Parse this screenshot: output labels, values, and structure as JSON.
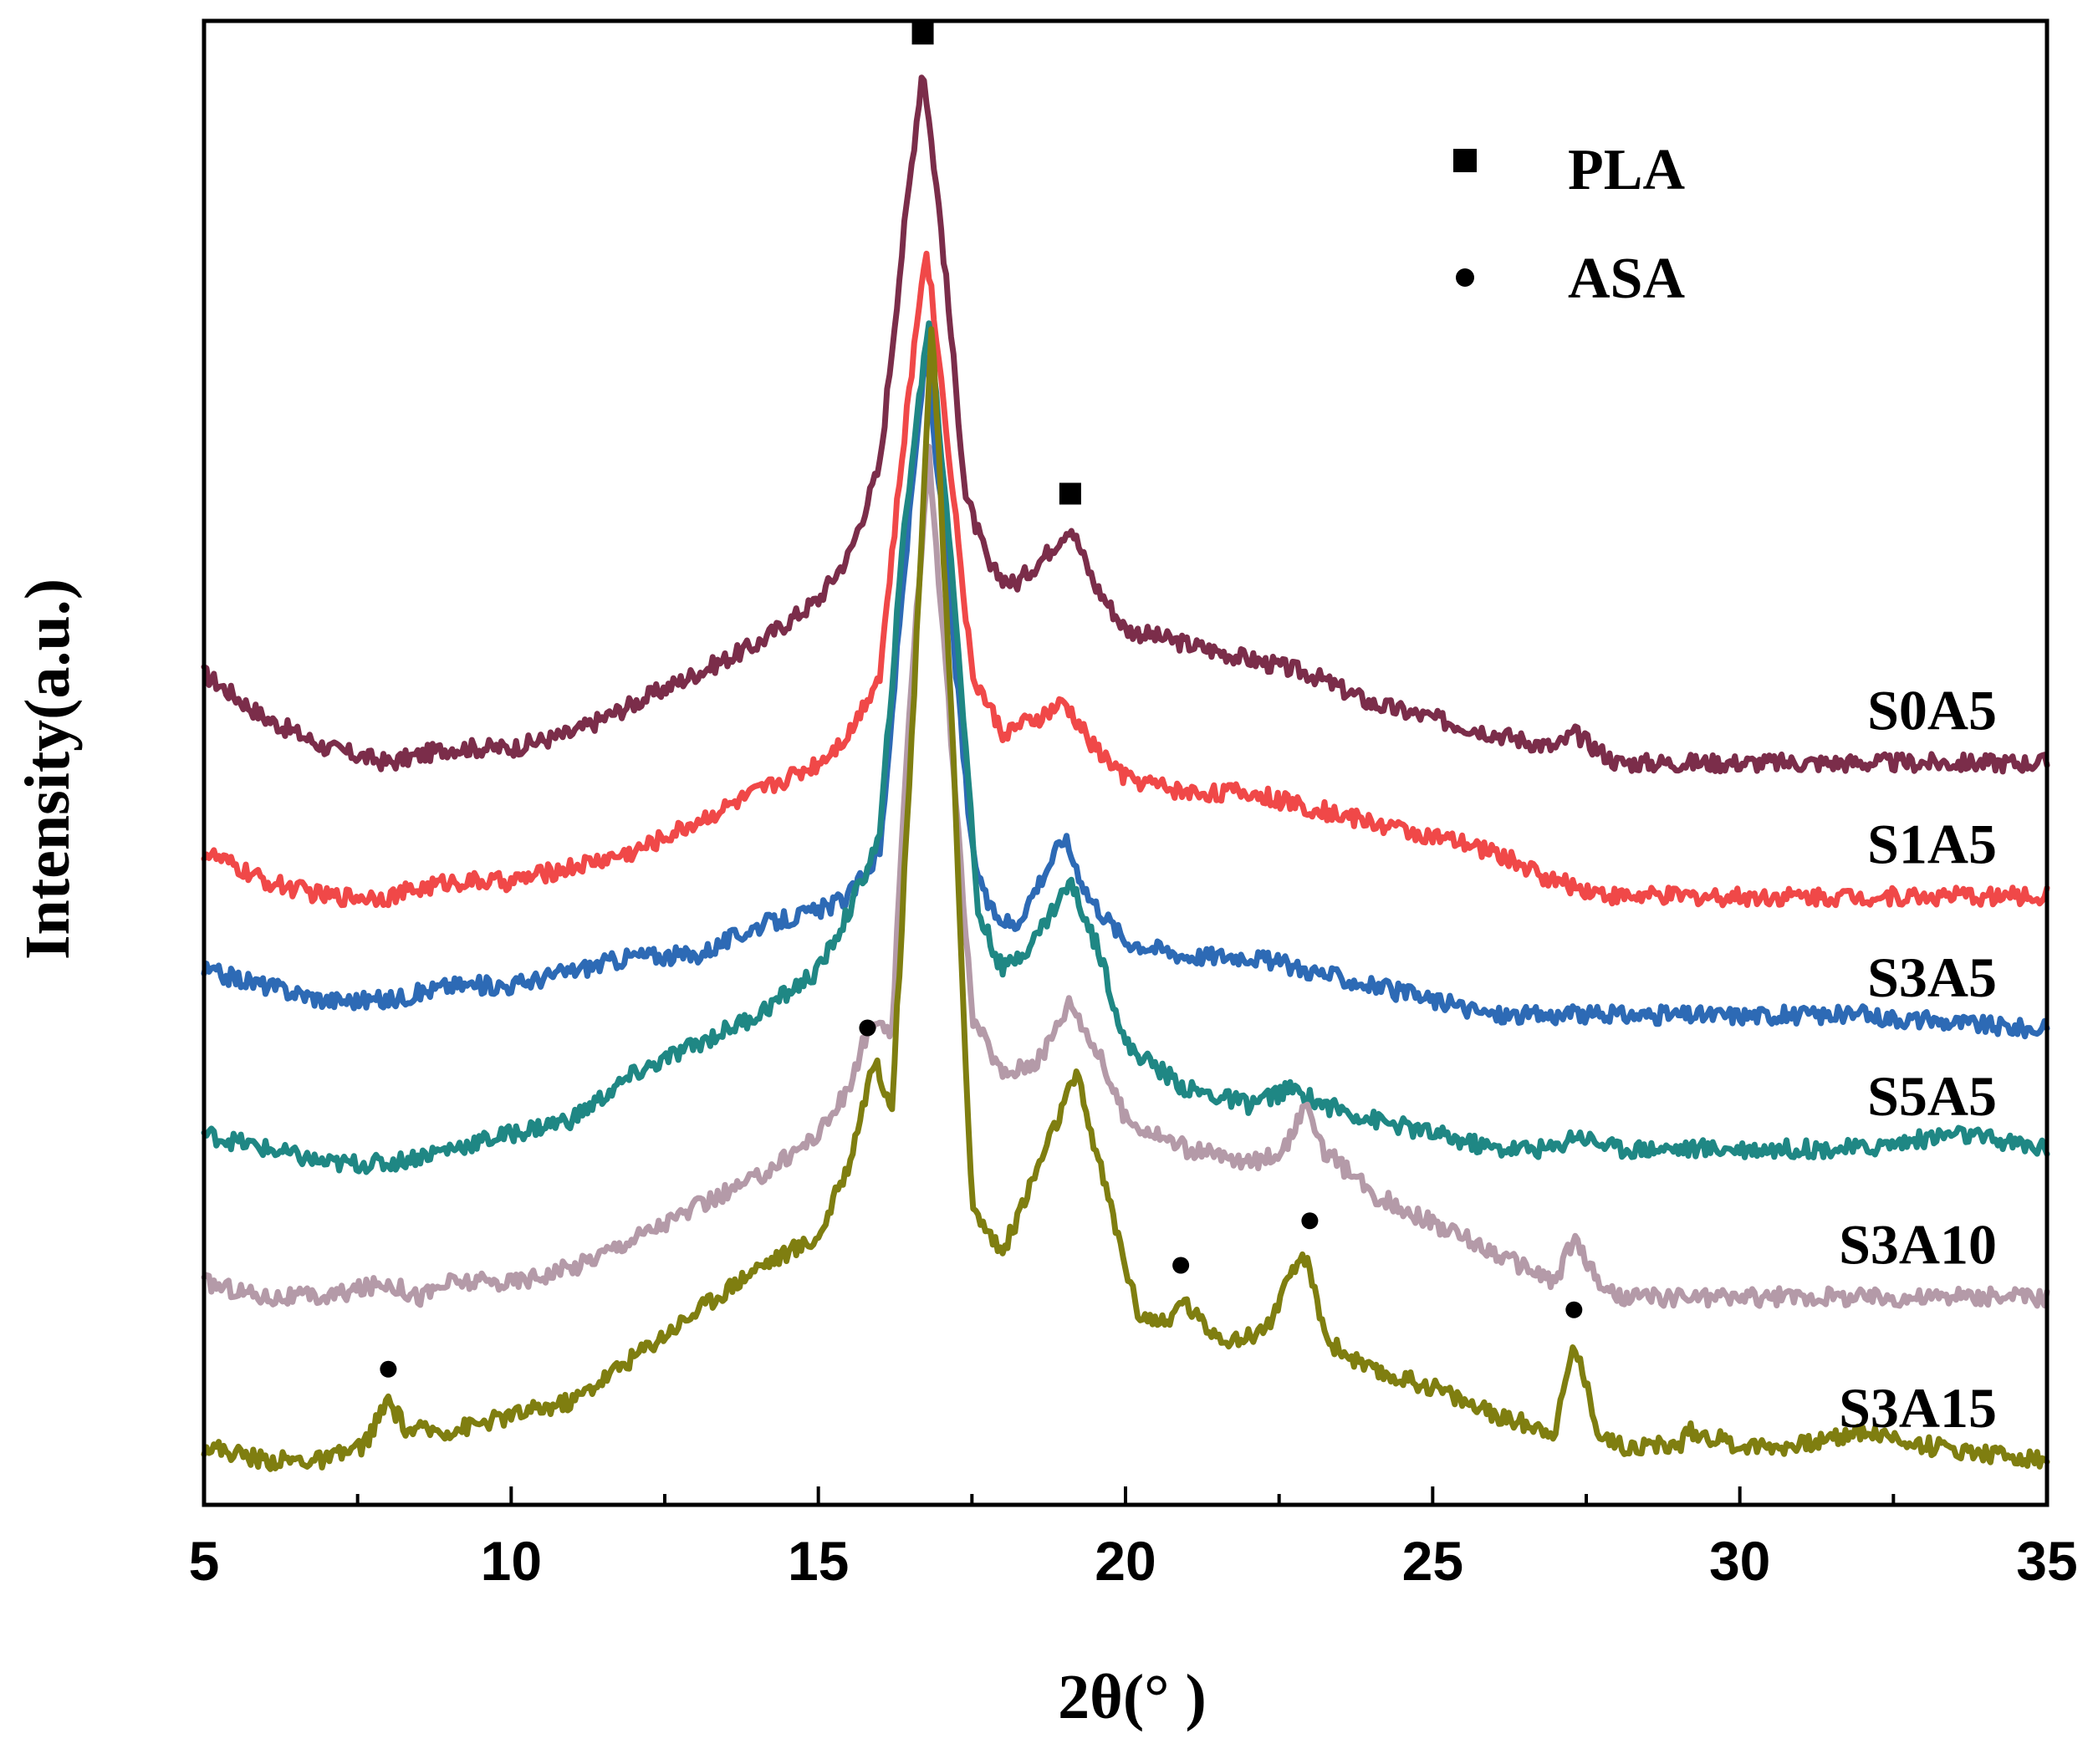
{
  "chart_data": {
    "type": "line",
    "title": "",
    "xlabel": "2θ(°  )",
    "ylabel": "Intensity(a.u.)",
    "xlim": [
      5,
      35
    ],
    "ylim": [
      0,
      1
    ],
    "xticks": [
      5,
      10,
      15,
      20,
      25,
      30,
      35
    ],
    "grid": false,
    "legend": {
      "position": "top-right",
      "entries": [
        {
          "label": "PLA",
          "marker": "square"
        },
        {
          "label": "ASA",
          "marker": "circle"
        }
      ]
    },
    "series": [
      {
        "name": "S0A5",
        "color": "#7b2d4a",
        "points": [
          [
            5,
            0.56
          ],
          [
            6,
            0.53
          ],
          [
            7,
            0.51
          ],
          [
            8,
            0.5
          ],
          [
            9,
            0.51
          ],
          [
            10,
            0.51
          ],
          [
            11,
            0.52
          ],
          [
            12,
            0.54
          ],
          [
            13,
            0.56
          ],
          [
            14,
            0.58
          ],
          [
            15,
            0.61
          ],
          [
            15.5,
            0.64
          ],
          [
            16,
            0.7
          ],
          [
            16.4,
            0.86
          ],
          [
            16.7,
            0.97
          ],
          [
            17.0,
            0.86
          ],
          [
            17.4,
            0.68
          ],
          [
            17.8,
            0.63
          ],
          [
            18.2,
            0.62
          ],
          [
            18.7,
            0.64
          ],
          [
            19.1,
            0.66
          ],
          [
            19.5,
            0.62
          ],
          [
            20,
            0.59
          ],
          [
            21,
            0.58
          ],
          [
            22,
            0.57
          ],
          [
            23,
            0.56
          ],
          [
            24,
            0.54
          ],
          [
            25,
            0.53
          ],
          [
            26,
            0.52
          ],
          [
            27,
            0.51
          ],
          [
            27.3,
            0.52
          ],
          [
            28,
            0.5
          ],
          [
            30,
            0.5
          ],
          [
            32,
            0.5
          ],
          [
            35,
            0.5
          ]
        ]
      },
      {
        "name": "S1A5",
        "color": "#f04848",
        "points": [
          [
            5,
            0.44
          ],
          [
            6,
            0.42
          ],
          [
            7,
            0.41
          ],
          [
            8,
            0.41
          ],
          [
            9,
            0.42
          ],
          [
            10,
            0.42
          ],
          [
            11,
            0.43
          ],
          [
            12,
            0.44
          ],
          [
            13,
            0.46
          ],
          [
            14,
            0.48
          ],
          [
            15,
            0.5
          ],
          [
            15.5,
            0.52
          ],
          [
            16,
            0.56
          ],
          [
            16.4,
            0.72
          ],
          [
            16.75,
            0.85
          ],
          [
            17.1,
            0.72
          ],
          [
            17.5,
            0.56
          ],
          [
            18,
            0.52
          ],
          [
            18.6,
            0.53
          ],
          [
            19,
            0.54
          ],
          [
            19.5,
            0.51
          ],
          [
            20,
            0.49
          ],
          [
            21,
            0.48
          ],
          [
            22,
            0.48
          ],
          [
            23,
            0.47
          ],
          [
            24,
            0.46
          ],
          [
            25,
            0.45
          ],
          [
            26,
            0.44
          ],
          [
            27,
            0.42
          ],
          [
            28,
            0.41
          ],
          [
            30,
            0.41
          ],
          [
            32,
            0.41
          ],
          [
            35,
            0.41
          ]
        ]
      },
      {
        "name": "S3A5",
        "color": "#2d6ab5",
        "points": [
          [
            5,
            0.36
          ],
          [
            6,
            0.35
          ],
          [
            7,
            0.34
          ],
          [
            8,
            0.34
          ],
          [
            9,
            0.35
          ],
          [
            10,
            0.35
          ],
          [
            11,
            0.36
          ],
          [
            12,
            0.37
          ],
          [
            13,
            0.37
          ],
          [
            14,
            0.39
          ],
          [
            15,
            0.4
          ],
          [
            15.5,
            0.41
          ],
          [
            16,
            0.44
          ],
          [
            16.4,
            0.63
          ],
          [
            16.75,
            0.78
          ],
          [
            17.1,
            0.63
          ],
          [
            17.5,
            0.44
          ],
          [
            17.8,
            0.4
          ],
          [
            18.2,
            0.39
          ],
          [
            18.6,
            0.42
          ],
          [
            19.0,
            0.45
          ],
          [
            19.4,
            0.41
          ],
          [
            20,
            0.38
          ],
          [
            21,
            0.37
          ],
          [
            22,
            0.37
          ],
          [
            23,
            0.36
          ],
          [
            24,
            0.35
          ],
          [
            25,
            0.34
          ],
          [
            26,
            0.33
          ],
          [
            27,
            0.33
          ],
          [
            28,
            0.33
          ],
          [
            30,
            0.33
          ],
          [
            32,
            0.33
          ],
          [
            35,
            0.32
          ]
        ]
      },
      {
        "name": "S5A5",
        "color": "#1f8784",
        "points": [
          [
            5,
            0.25
          ],
          [
            6,
            0.24
          ],
          [
            7,
            0.23
          ],
          [
            8,
            0.23
          ],
          [
            9,
            0.24
          ],
          [
            10,
            0.25
          ],
          [
            11,
            0.26
          ],
          [
            12,
            0.29
          ],
          [
            13,
            0.31
          ],
          [
            14,
            0.33
          ],
          [
            15,
            0.36
          ],
          [
            15.5,
            0.4
          ],
          [
            16,
            0.45
          ],
          [
            16.4,
            0.66
          ],
          [
            16.8,
            0.8
          ],
          [
            17.2,
            0.62
          ],
          [
            17.6,
            0.4
          ],
          [
            18,
            0.36
          ],
          [
            18.5,
            0.38
          ],
          [
            19.1,
            0.42
          ],
          [
            19.6,
            0.37
          ],
          [
            20,
            0.31
          ],
          [
            21,
            0.28
          ],
          [
            22,
            0.27
          ],
          [
            22.7,
            0.28
          ],
          [
            23.2,
            0.27
          ],
          [
            24,
            0.26
          ],
          [
            25,
            0.25
          ],
          [
            26,
            0.24
          ],
          [
            27,
            0.24
          ],
          [
            27.3,
            0.25
          ],
          [
            28,
            0.24
          ],
          [
            30,
            0.24
          ],
          [
            32,
            0.24
          ],
          [
            33.5,
            0.25
          ],
          [
            35,
            0.24
          ]
        ]
      },
      {
        "name": "S3A10",
        "color": "#b49aa8",
        "points": [
          [
            5,
            0.15
          ],
          [
            6,
            0.14
          ],
          [
            7,
            0.14
          ],
          [
            8,
            0.15
          ],
          [
            8.5,
            0.14
          ],
          [
            9,
            0.15
          ],
          [
            10,
            0.15
          ],
          [
            11,
            0.16
          ],
          [
            12,
            0.18
          ],
          [
            13,
            0.2
          ],
          [
            14,
            0.22
          ],
          [
            15,
            0.25
          ],
          [
            15.5,
            0.28
          ],
          [
            15.8,
            0.32
          ],
          [
            16.2,
            0.32
          ],
          [
            16.5,
            0.55
          ],
          [
            16.8,
            0.71
          ],
          [
            17.1,
            0.55
          ],
          [
            17.5,
            0.33
          ],
          [
            18,
            0.29
          ],
          [
            18.6,
            0.3
          ],
          [
            19.1,
            0.34
          ],
          [
            19.6,
            0.3
          ],
          [
            20,
            0.26
          ],
          [
            21,
            0.24
          ],
          [
            22,
            0.23
          ],
          [
            22.6,
            0.24
          ],
          [
            22.9,
            0.27
          ],
          [
            23.2,
            0.24
          ],
          [
            24,
            0.21
          ],
          [
            25,
            0.19
          ],
          [
            26,
            0.17
          ],
          [
            27,
            0.15
          ],
          [
            27.3,
            0.18
          ],
          [
            27.7,
            0.15
          ],
          [
            28,
            0.14
          ],
          [
            30,
            0.14
          ],
          [
            32,
            0.14
          ],
          [
            35,
            0.14
          ]
        ]
      },
      {
        "name": "S3A15",
        "color": "#7f7e10",
        "points": [
          [
            5,
            0.04
          ],
          [
            6,
            0.03
          ],
          [
            7,
            0.03
          ],
          [
            7.6,
            0.04
          ],
          [
            8,
            0.07
          ],
          [
            8.3,
            0.05
          ],
          [
            9,
            0.05
          ],
          [
            10,
            0.06
          ],
          [
            11,
            0.07
          ],
          [
            12,
            0.1
          ],
          [
            13,
            0.13
          ],
          [
            14,
            0.16
          ],
          [
            15,
            0.18
          ],
          [
            15.5,
            0.23
          ],
          [
            15.9,
            0.3
          ],
          [
            16.2,
            0.27
          ],
          [
            16.5,
            0.5
          ],
          [
            16.85,
            0.8
          ],
          [
            17.2,
            0.5
          ],
          [
            17.5,
            0.2
          ],
          [
            18,
            0.17
          ],
          [
            18.5,
            0.22
          ],
          [
            19.2,
            0.29
          ],
          [
            19.7,
            0.21
          ],
          [
            20.2,
            0.13
          ],
          [
            20.7,
            0.12
          ],
          [
            20.9,
            0.14
          ],
          [
            21.3,
            0.12
          ],
          [
            21.8,
            0.11
          ],
          [
            22.3,
            0.12
          ],
          [
            22.9,
            0.17
          ],
          [
            23.3,
            0.11
          ],
          [
            24,
            0.09
          ],
          [
            25,
            0.08
          ],
          [
            26,
            0.06
          ],
          [
            27,
            0.05
          ],
          [
            27.3,
            0.11
          ],
          [
            27.7,
            0.05
          ],
          [
            28,
            0.04
          ],
          [
            29,
            0.04
          ],
          [
            29.2,
            0.05
          ],
          [
            30,
            0.04
          ],
          [
            31,
            0.04
          ],
          [
            32,
            0.05
          ],
          [
            33,
            0.04
          ],
          [
            35,
            0.03
          ]
        ]
      }
    ],
    "annotations": [
      {
        "marker": "square",
        "x": 16.7,
        "series": "S0A5",
        "label": "PLA"
      },
      {
        "marker": "square",
        "x": 19.1,
        "series": "S0A5",
        "label": "PLA"
      },
      {
        "marker": "circle",
        "x": 8.0,
        "series": "S3A15",
        "label": "ASA"
      },
      {
        "marker": "circle",
        "x": 15.8,
        "series": "S3A15",
        "label": "ASA"
      },
      {
        "marker": "circle",
        "x": 20.9,
        "series": "S3A15",
        "label": "ASA"
      },
      {
        "marker": "circle",
        "x": 23.0,
        "series": "S3A15",
        "label": "ASA"
      },
      {
        "marker": "circle",
        "x": 27.3,
        "series": "S3A15",
        "label": "ASA"
      }
    ]
  }
}
